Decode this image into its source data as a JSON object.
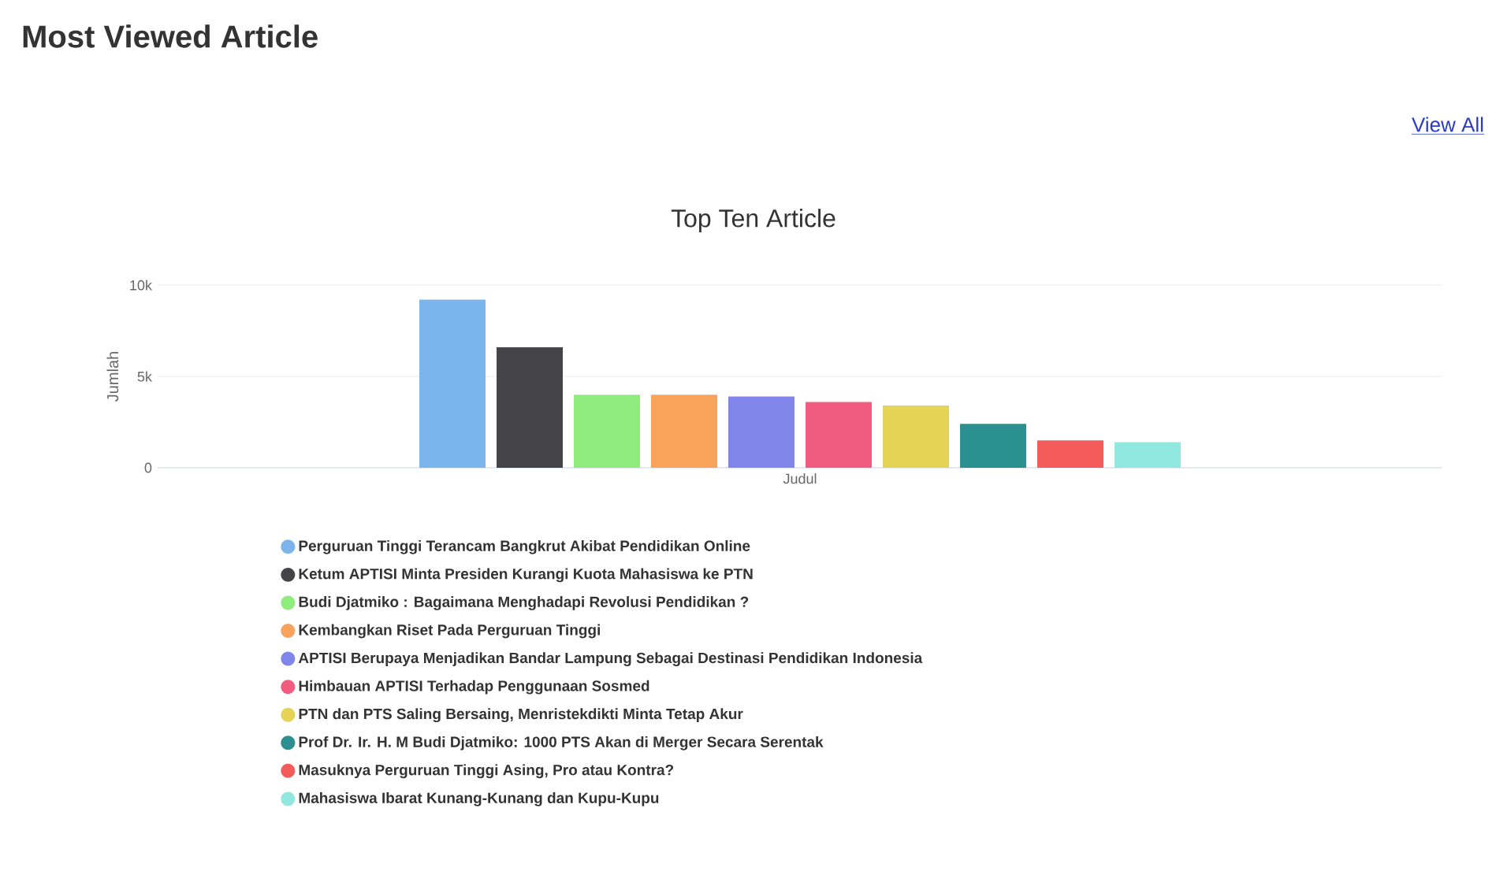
{
  "chart_data": {
    "type": "bar",
    "title": "Most Viewed Article",
    "subtitle": "Top Ten Article",
    "ylabel": "Jumlah",
    "annotations": [
      "View All"
    ],
    "categories": [
      "Judul"
    ],
    "series": [
      {
        "name": "Perguruan Tinggi Terancam Bangkrut Akibat Pendidikan Online",
        "color": "#7cb5ec",
        "values": [
          9200
        ]
      },
      {
        "name": "Ketum APTISI Minta Presiden Kurangi Kuota Mahasiswa ke PTN",
        "color": "#434348",
        "values": [
          6600
        ]
      },
      {
        "name": "Budi Djatmiko : Bagaimana Menghadapi Revolusi Pendidikan ?",
        "color": "#90ed7d",
        "values": [
          4000
        ]
      },
      {
        "name": "Kembangkan Riset Pada Perguruan Tinggi",
        "color": "#f7a35c",
        "values": [
          4000
        ]
      },
      {
        "name": "APTISI Berupaya Menjadikan Bandar Lampung Sebagai Destinasi Pendidikan Indonesia",
        "color": "#8085e9",
        "values": [
          3900
        ]
      },
      {
        "name": "Himbauan APTISI Terhadap Penggunaan Sosmed",
        "color": "#f15c80",
        "values": [
          3600
        ]
      },
      {
        "name": "PTN dan PTS Saling Bersaing, Menristekdikti Minta Tetap Akur",
        "color": "#e4d354",
        "values": [
          3400
        ]
      },
      {
        "name": "Prof Dr. Ir. H. M Budi Djatmiko: 1000 PTS Akan di Merger Secara Serentak",
        "color": "#2b908f",
        "values": [
          2400
        ]
      },
      {
        "name": "Masuknya Perguruan Tinggi Asing, Pro atau Kontra?",
        "color": "#f45b5b",
        "values": [
          1500
        ]
      },
      {
        "name": "Mahasiswa Ibarat Kunang-Kunang dan Kupu-Kupu",
        "color": "#91e8e1",
        "values": [
          1400
        ]
      }
    ],
    "ylim": [
      0,
      10000
    ],
    "yticks": [
      {
        "value": 0,
        "label": "0"
      },
      {
        "value": 5000,
        "label": "5k"
      },
      {
        "value": 10000,
        "label": "10k"
      }
    ],
    "grid": "y",
    "legend": "bottom"
  }
}
